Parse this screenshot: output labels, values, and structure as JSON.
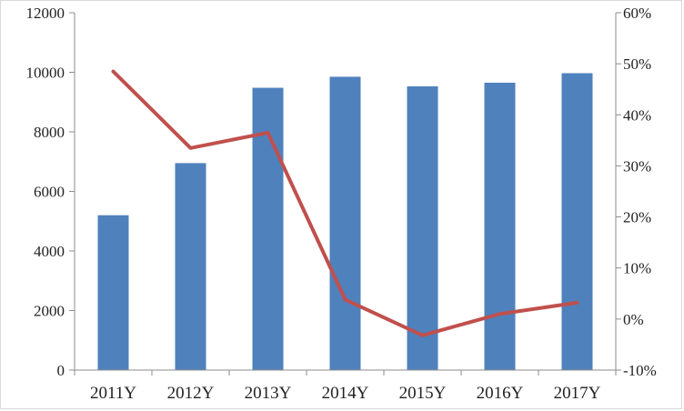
{
  "chart_data": {
    "type": "bar",
    "categories": [
      "2011Y",
      "2012Y",
      "2013Y",
      "2014Y",
      "2015Y",
      "2016Y",
      "2017Y"
    ],
    "title": "",
    "xlabel": "",
    "ylabel": "",
    "ylim": [
      0,
      12000
    ],
    "y2lim": [
      -10,
      60
    ],
    "y_ticks": [
      "0",
      "2000",
      "4000",
      "6000",
      "8000",
      "10000",
      "12000"
    ],
    "y2_ticks": [
      "-10%",
      "0%",
      "10%",
      "20%",
      "30%",
      "40%",
      "50%",
      "60%"
    ],
    "grid": false,
    "legend": "none",
    "series": [
      {
        "type": "bar",
        "axis": "left",
        "color": "#4f81bd",
        "values": [
          5200,
          6950,
          9480,
          9850,
          9530,
          9650,
          9970
        ]
      },
      {
        "type": "line",
        "axis": "right",
        "color": "#c0504d",
        "values": [
          48.5,
          33.5,
          36.5,
          3.8,
          -3.2,
          1.0,
          3.2
        ]
      }
    ]
  }
}
